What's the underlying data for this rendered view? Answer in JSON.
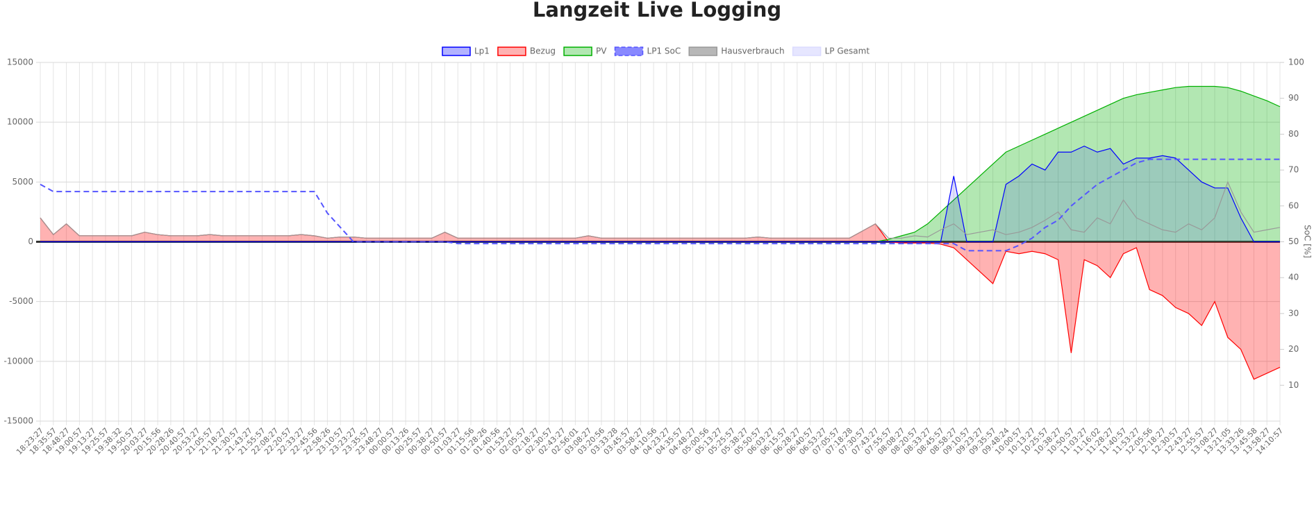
{
  "chart_data": {
    "type": "line",
    "title": "Langzeit Live Logging",
    "y2label": "SoC [%]",
    "categories": [
      "18:23:27",
      "18:35:57",
      "18:48:27",
      "19:00:57",
      "19:13:27",
      "19:25:57",
      "19:38:32",
      "19:50:57",
      "20:03:27",
      "20:15:56",
      "20:28:26",
      "20:40:57",
      "20:53:27",
      "21:05:57",
      "21:18:27",
      "21:30:57",
      "21:43:27",
      "21:55:57",
      "22:08:27",
      "22:20:57",
      "22:33:27",
      "22:45:56",
      "22:58:26",
      "23:10:57",
      "23:23:27",
      "23:35:57",
      "23:48:27",
      "00:00:57",
      "00:13:26",
      "00:25:57",
      "00:38:27",
      "00:50:57",
      "01:03:27",
      "01:15:56",
      "01:28:26",
      "01:40:56",
      "01:53:27",
      "02:05:57",
      "02:18:27",
      "02:30:57",
      "02:43:27",
      "02:56:01",
      "03:08:27",
      "03:20:56",
      "03:33:28",
      "03:45:57",
      "03:58:27",
      "04:10:56",
      "04:23:27",
      "04:35:57",
      "04:48:27",
      "05:00:56",
      "05:13:27",
      "05:25:57",
      "05:38:27",
      "05:50:57",
      "06:03:27",
      "06:15:57",
      "06:28:27",
      "06:40:57",
      "06:53:27",
      "07:05:57",
      "07:18:28",
      "07:30:57",
      "07:43:27",
      "07:55:57",
      "08:08:27",
      "08:20:57",
      "08:33:27",
      "08:45:57",
      "08:58:27",
      "09:10:57",
      "09:23:27",
      "09:35:57",
      "09:48:24",
      "10:00:57",
      "10:13:27",
      "10:25:57",
      "10:38:27",
      "10:50:57",
      "11:03:27",
      "11:16:02",
      "11:28:27",
      "11:40:57",
      "11:53:27",
      "12:05:56",
      "12:18:27",
      "12:30:57",
      "12:43:27",
      "12:55:57",
      "13:08:27",
      "13:21:05",
      "13:33:26",
      "13:45:58",
      "13:58:27",
      "14:10:57"
    ],
    "series": [
      {
        "name": "Lp1",
        "color": "#0000ff",
        "fill": true,
        "values": [
          0,
          0,
          0,
          0,
          0,
          0,
          0,
          0,
          0,
          0,
          0,
          0,
          0,
          0,
          0,
          0,
          0,
          0,
          0,
          0,
          0,
          0,
          0,
          0,
          0,
          0,
          0,
          0,
          0,
          0,
          0,
          0,
          0,
          0,
          0,
          0,
          0,
          0,
          0,
          0,
          0,
          0,
          0,
          0,
          0,
          0,
          0,
          0,
          0,
          0,
          0,
          0,
          0,
          0,
          0,
          0,
          0,
          0,
          0,
          0,
          0,
          0,
          0,
          0,
          0,
          0,
          0,
          0,
          0,
          0,
          5500,
          0,
          0,
          0,
          4800,
          5500,
          6500,
          6000,
          7500,
          7500,
          8000,
          7500,
          7800,
          6500,
          7000,
          7000,
          7200,
          7000,
          6000,
          5000,
          4500,
          4500,
          2000,
          0,
          0,
          0
        ]
      },
      {
        "name": "Bezug",
        "color": "#ff0000",
        "fill": true,
        "values": [
          2000,
          600,
          1500,
          500,
          500,
          500,
          500,
          500,
          800,
          600,
          500,
          500,
          500,
          600,
          500,
          500,
          500,
          500,
          500,
          500,
          600,
          500,
          300,
          400,
          400,
          300,
          300,
          300,
          300,
          300,
          300,
          800,
          300,
          300,
          300,
          300,
          300,
          300,
          300,
          300,
          300,
          300,
          500,
          300,
          300,
          300,
          300,
          300,
          300,
          300,
          300,
          300,
          300,
          300,
          300,
          400,
          300,
          300,
          300,
          300,
          300,
          300,
          300,
          900,
          1500,
          0,
          -100,
          -100,
          -100,
          -200,
          -500,
          -1500,
          -2500,
          -3500,
          -800,
          -1000,
          -800,
          -1000,
          -1500,
          -9300,
          -1500,
          -2000,
          -3000,
          -1000,
          -500,
          -4000,
          -4500,
          -5500,
          -6000,
          -7000,
          -5000,
          -8000,
          -9000,
          -11500,
          -11000,
          -10500
        ]
      },
      {
        "name": "PV",
        "color": "#00b000",
        "fill": true,
        "values": [
          0,
          0,
          0,
          0,
          0,
          0,
          0,
          0,
          0,
          0,
          0,
          0,
          0,
          0,
          0,
          0,
          0,
          0,
          0,
          0,
          0,
          0,
          0,
          0,
          0,
          0,
          0,
          0,
          0,
          0,
          0,
          0,
          0,
          0,
          0,
          0,
          0,
          0,
          0,
          0,
          0,
          0,
          0,
          0,
          0,
          0,
          0,
          0,
          0,
          0,
          0,
          0,
          0,
          0,
          0,
          0,
          0,
          0,
          0,
          0,
          0,
          0,
          0,
          0,
          0,
          200,
          500,
          800,
          1500,
          2500,
          3500,
          4500,
          5500,
          6500,
          7500,
          8000,
          8500,
          9000,
          9500,
          10000,
          10500,
          11000,
          11500,
          12000,
          12300,
          12500,
          12700,
          12900,
          13000,
          13000,
          13000,
          12900,
          12600,
          12200,
          11800,
          11300
        ]
      },
      {
        "name": "LP1 SoC",
        "color": "#5555ff",
        "dashed": true,
        "axis": "y2",
        "values": [
          66,
          64,
          64,
          64,
          64,
          64,
          64,
          64,
          64,
          64,
          64,
          64,
          64,
          64,
          64,
          64,
          64,
          64,
          64,
          64,
          64,
          64,
          58,
          54,
          50,
          50,
          50,
          50,
          50,
          50,
          50,
          50,
          49.5,
          49.5,
          49.5,
          49.5,
          49.5,
          49.5,
          49.5,
          49.5,
          49.5,
          49.5,
          49.5,
          49.5,
          49.5,
          49.5,
          49.5,
          49.5,
          49.5,
          49.5,
          49.5,
          49.5,
          49.5,
          49.5,
          49.5,
          49.5,
          49.5,
          49.5,
          49.5,
          49.5,
          49.5,
          49.5,
          49.5,
          49.5,
          49.5,
          49.5,
          49.5,
          49.5,
          49.5,
          49.5,
          49.5,
          47.5,
          47.5,
          47.5,
          47.5,
          49,
          51,
          54,
          56,
          60,
          63,
          66,
          68,
          70,
          72,
          73,
          73,
          73,
          73,
          73,
          73,
          73,
          73,
          73,
          73,
          73
        ]
      },
      {
        "name": "Hausverbrauch",
        "color": "#999999",
        "values": [
          2000,
          600,
          1500,
          500,
          500,
          500,
          500,
          500,
          800,
          600,
          500,
          500,
          500,
          600,
          500,
          500,
          500,
          500,
          500,
          500,
          600,
          500,
          300,
          400,
          400,
          300,
          300,
          300,
          300,
          300,
          300,
          800,
          300,
          300,
          300,
          300,
          300,
          300,
          300,
          300,
          300,
          300,
          500,
          300,
          300,
          300,
          300,
          300,
          300,
          300,
          300,
          300,
          300,
          300,
          300,
          400,
          300,
          300,
          300,
          300,
          300,
          300,
          300,
          900,
          1500,
          300,
          300,
          500,
          400,
          1000,
          1500,
          600,
          800,
          1000,
          600,
          800,
          1200,
          1800,
          2500,
          1000,
          800,
          2000,
          1500,
          3500,
          2000,
          1500,
          1000,
          800,
          1500,
          1000,
          2000,
          5000,
          2500,
          800,
          1000,
          1200
        ]
      },
      {
        "name": "LP Gesamt",
        "color": "#dcdcff",
        "values": [
          null,
          null,
          null,
          null,
          null,
          null,
          null,
          null,
          null,
          null,
          null,
          null,
          null,
          null,
          null,
          null,
          null,
          null,
          null,
          null,
          null,
          null,
          null,
          null,
          null,
          null,
          null,
          null,
          null,
          null,
          null,
          null,
          null,
          null,
          null,
          null,
          null,
          null,
          null,
          null,
          null,
          null,
          null,
          null,
          null,
          null,
          null,
          null,
          null,
          null,
          null,
          null,
          null,
          null,
          null,
          null,
          null,
          null,
          null,
          null,
          null,
          null,
          null,
          null,
          null,
          null,
          null,
          null,
          null,
          null,
          null,
          null,
          null,
          null,
          null,
          null,
          null,
          null,
          null,
          null,
          null,
          null,
          null,
          null,
          null,
          null,
          null,
          null,
          null,
          null,
          null,
          null,
          null,
          null,
          null,
          null
        ]
      }
    ],
    "ylim": [
      -15000,
      15000
    ],
    "yticks": [
      -15000,
      -10000,
      -5000,
      0,
      5000,
      10000,
      15000
    ],
    "y2lim": [
      0,
      100
    ],
    "y2ticks": [
      10,
      20,
      30,
      40,
      50,
      60,
      70,
      80,
      90,
      100
    ],
    "grid": true
  }
}
